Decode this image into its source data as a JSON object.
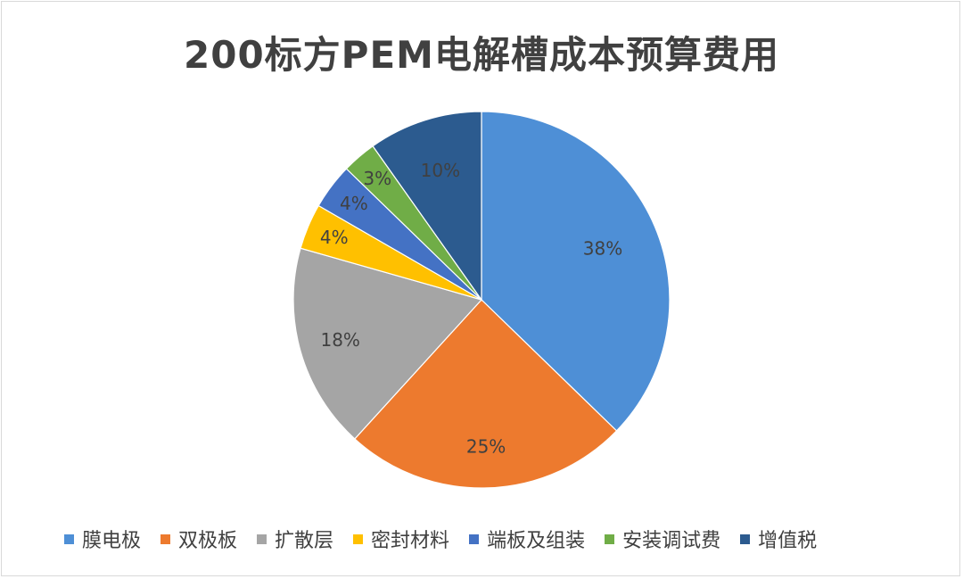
{
  "chart_data": {
    "type": "pie",
    "title": "200标方PEM电解槽成本预算费用",
    "categories": [
      "膜电极",
      "双极板",
      "扩散层",
      "密封材料",
      "端板及组装",
      "安装调试费",
      "增值税"
    ],
    "values": [
      38,
      25,
      18,
      4,
      4,
      3,
      10
    ],
    "labels": [
      "38%",
      "25%",
      "18%",
      "4%",
      "4%",
      "3%",
      "10%"
    ],
    "colors": [
      "#4e8fd6",
      "#ed7a2e",
      "#a5a5a5",
      "#ffc000",
      "#4472c4",
      "#70ad47",
      "#2c5b8f"
    ],
    "legend_position": "bottom"
  }
}
